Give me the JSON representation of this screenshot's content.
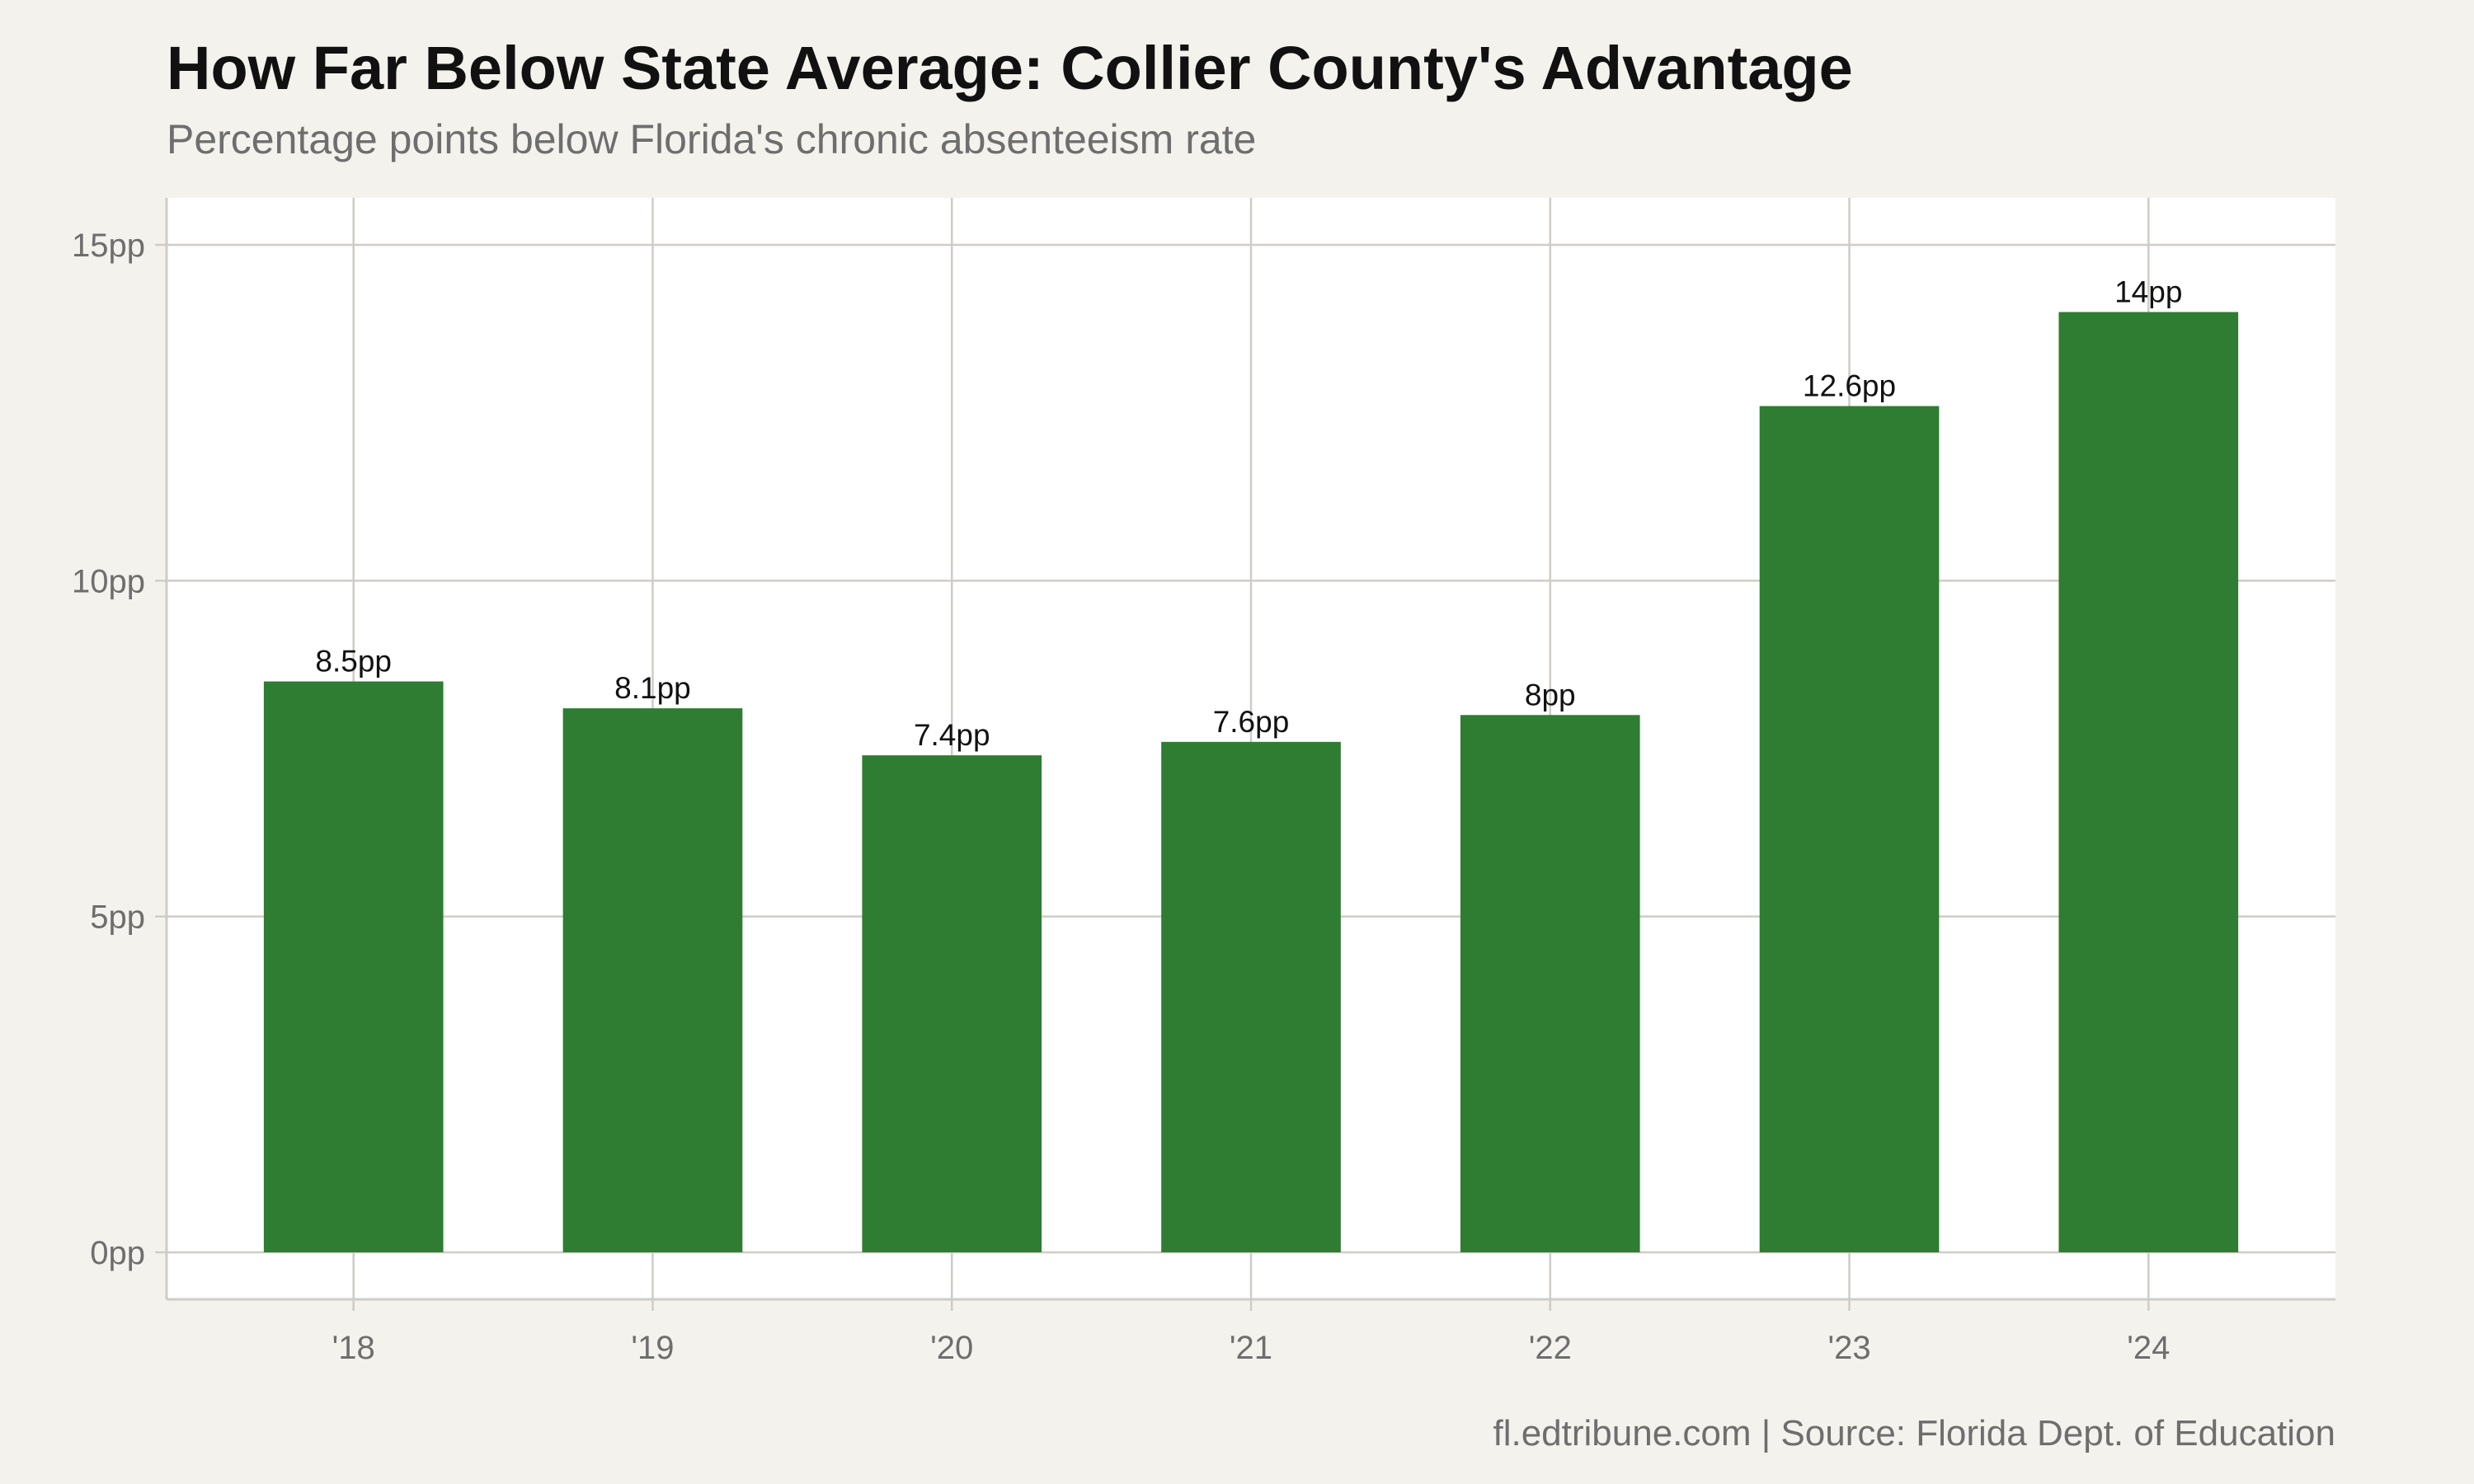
{
  "title": "How Far Below State Average: Collier County's Advantage",
  "subtitle": "Percentage points below Florida's chronic absenteeism rate",
  "caption": "fl.edtribune.com | Source: Florida Dept. of Education",
  "colors": {
    "bar": "#2e7d32",
    "panel": "#ffffff",
    "background": "#f4f2ed",
    "grid": "#cfccc6",
    "axis_text": "#6e6e6e"
  },
  "chart_data": {
    "type": "bar",
    "categories": [
      "'18",
      "'19",
      "'20",
      "'21",
      "'22",
      "'23",
      "'24"
    ],
    "values": [
      8.5,
      8.1,
      7.4,
      7.6,
      8,
      12.6,
      14
    ],
    "data_labels": [
      "8.5pp",
      "8.1pp",
      "7.4pp",
      "7.6pp",
      "8pp",
      "12.6pp",
      "14pp"
    ],
    "yticks": [
      0,
      5,
      10,
      15
    ],
    "ytick_labels": [
      "0pp",
      "5pp",
      "10pp",
      "15pp"
    ],
    "ylim": [
      -0.7,
      15.7
    ],
    "grid": true,
    "legend": "none"
  }
}
